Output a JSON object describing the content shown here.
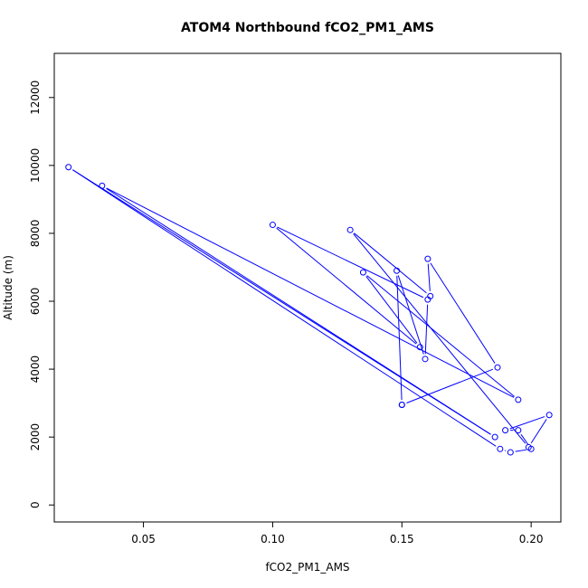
{
  "chart_data": {
    "type": "line",
    "title": "ATOM4 Northbound fCO2_PM1_AMS",
    "xlabel": "fCO2_PM1_AMS",
    "ylabel": "Altitude (m)",
    "xlim": [
      0.0155,
      0.2115
    ],
    "ylim": [
      -500,
      13300
    ],
    "xticks": [
      0.05,
      0.1,
      0.15,
      0.2
    ],
    "xtick_labels": [
      "0.05",
      "0.10",
      "0.15",
      "0.20"
    ],
    "yticks": [
      0,
      2000,
      4000,
      6000,
      8000,
      10000,
      12000
    ],
    "ytick_labels": [
      "0",
      "2000",
      "4000",
      "6000",
      "8000",
      "10000",
      "12000"
    ],
    "grid": false,
    "series": [
      {
        "color": "#0000ff",
        "marker": "open-circle",
        "points": [
          {
            "x": 0.15,
            "y": 2950
          },
          {
            "x": 0.187,
            "y": 4050
          },
          {
            "x": 0.16,
            "y": 7250
          },
          {
            "x": 0.161,
            "y": 6150
          },
          {
            "x": 0.13,
            "y": 8100
          },
          {
            "x": 0.199,
            "y": 1700
          },
          {
            "x": 0.207,
            "y": 2650
          },
          {
            "x": 0.19,
            "y": 2200
          },
          {
            "x": 0.195,
            "y": 2200
          },
          {
            "x": 0.2,
            "y": 1650
          },
          {
            "x": 0.192,
            "y": 1550
          },
          {
            "x": 0.188,
            "y": 1650
          },
          {
            "x": 0.021,
            "y": 9950
          },
          {
            "x": 0.186,
            "y": 2000
          },
          {
            "x": 0.034,
            "y": 9400
          },
          {
            "x": 0.195,
            "y": 3100
          },
          {
            "x": 0.135,
            "y": 6850
          },
          {
            "x": 0.157,
            "y": 4650
          },
          {
            "x": 0.1,
            "y": 8250
          },
          {
            "x": 0.16,
            "y": 6050
          },
          {
            "x": 0.159,
            "y": 4300
          },
          {
            "x": 0.148,
            "y": 6900
          },
          {
            "x": 0.15,
            "y": 2950
          }
        ]
      }
    ]
  }
}
